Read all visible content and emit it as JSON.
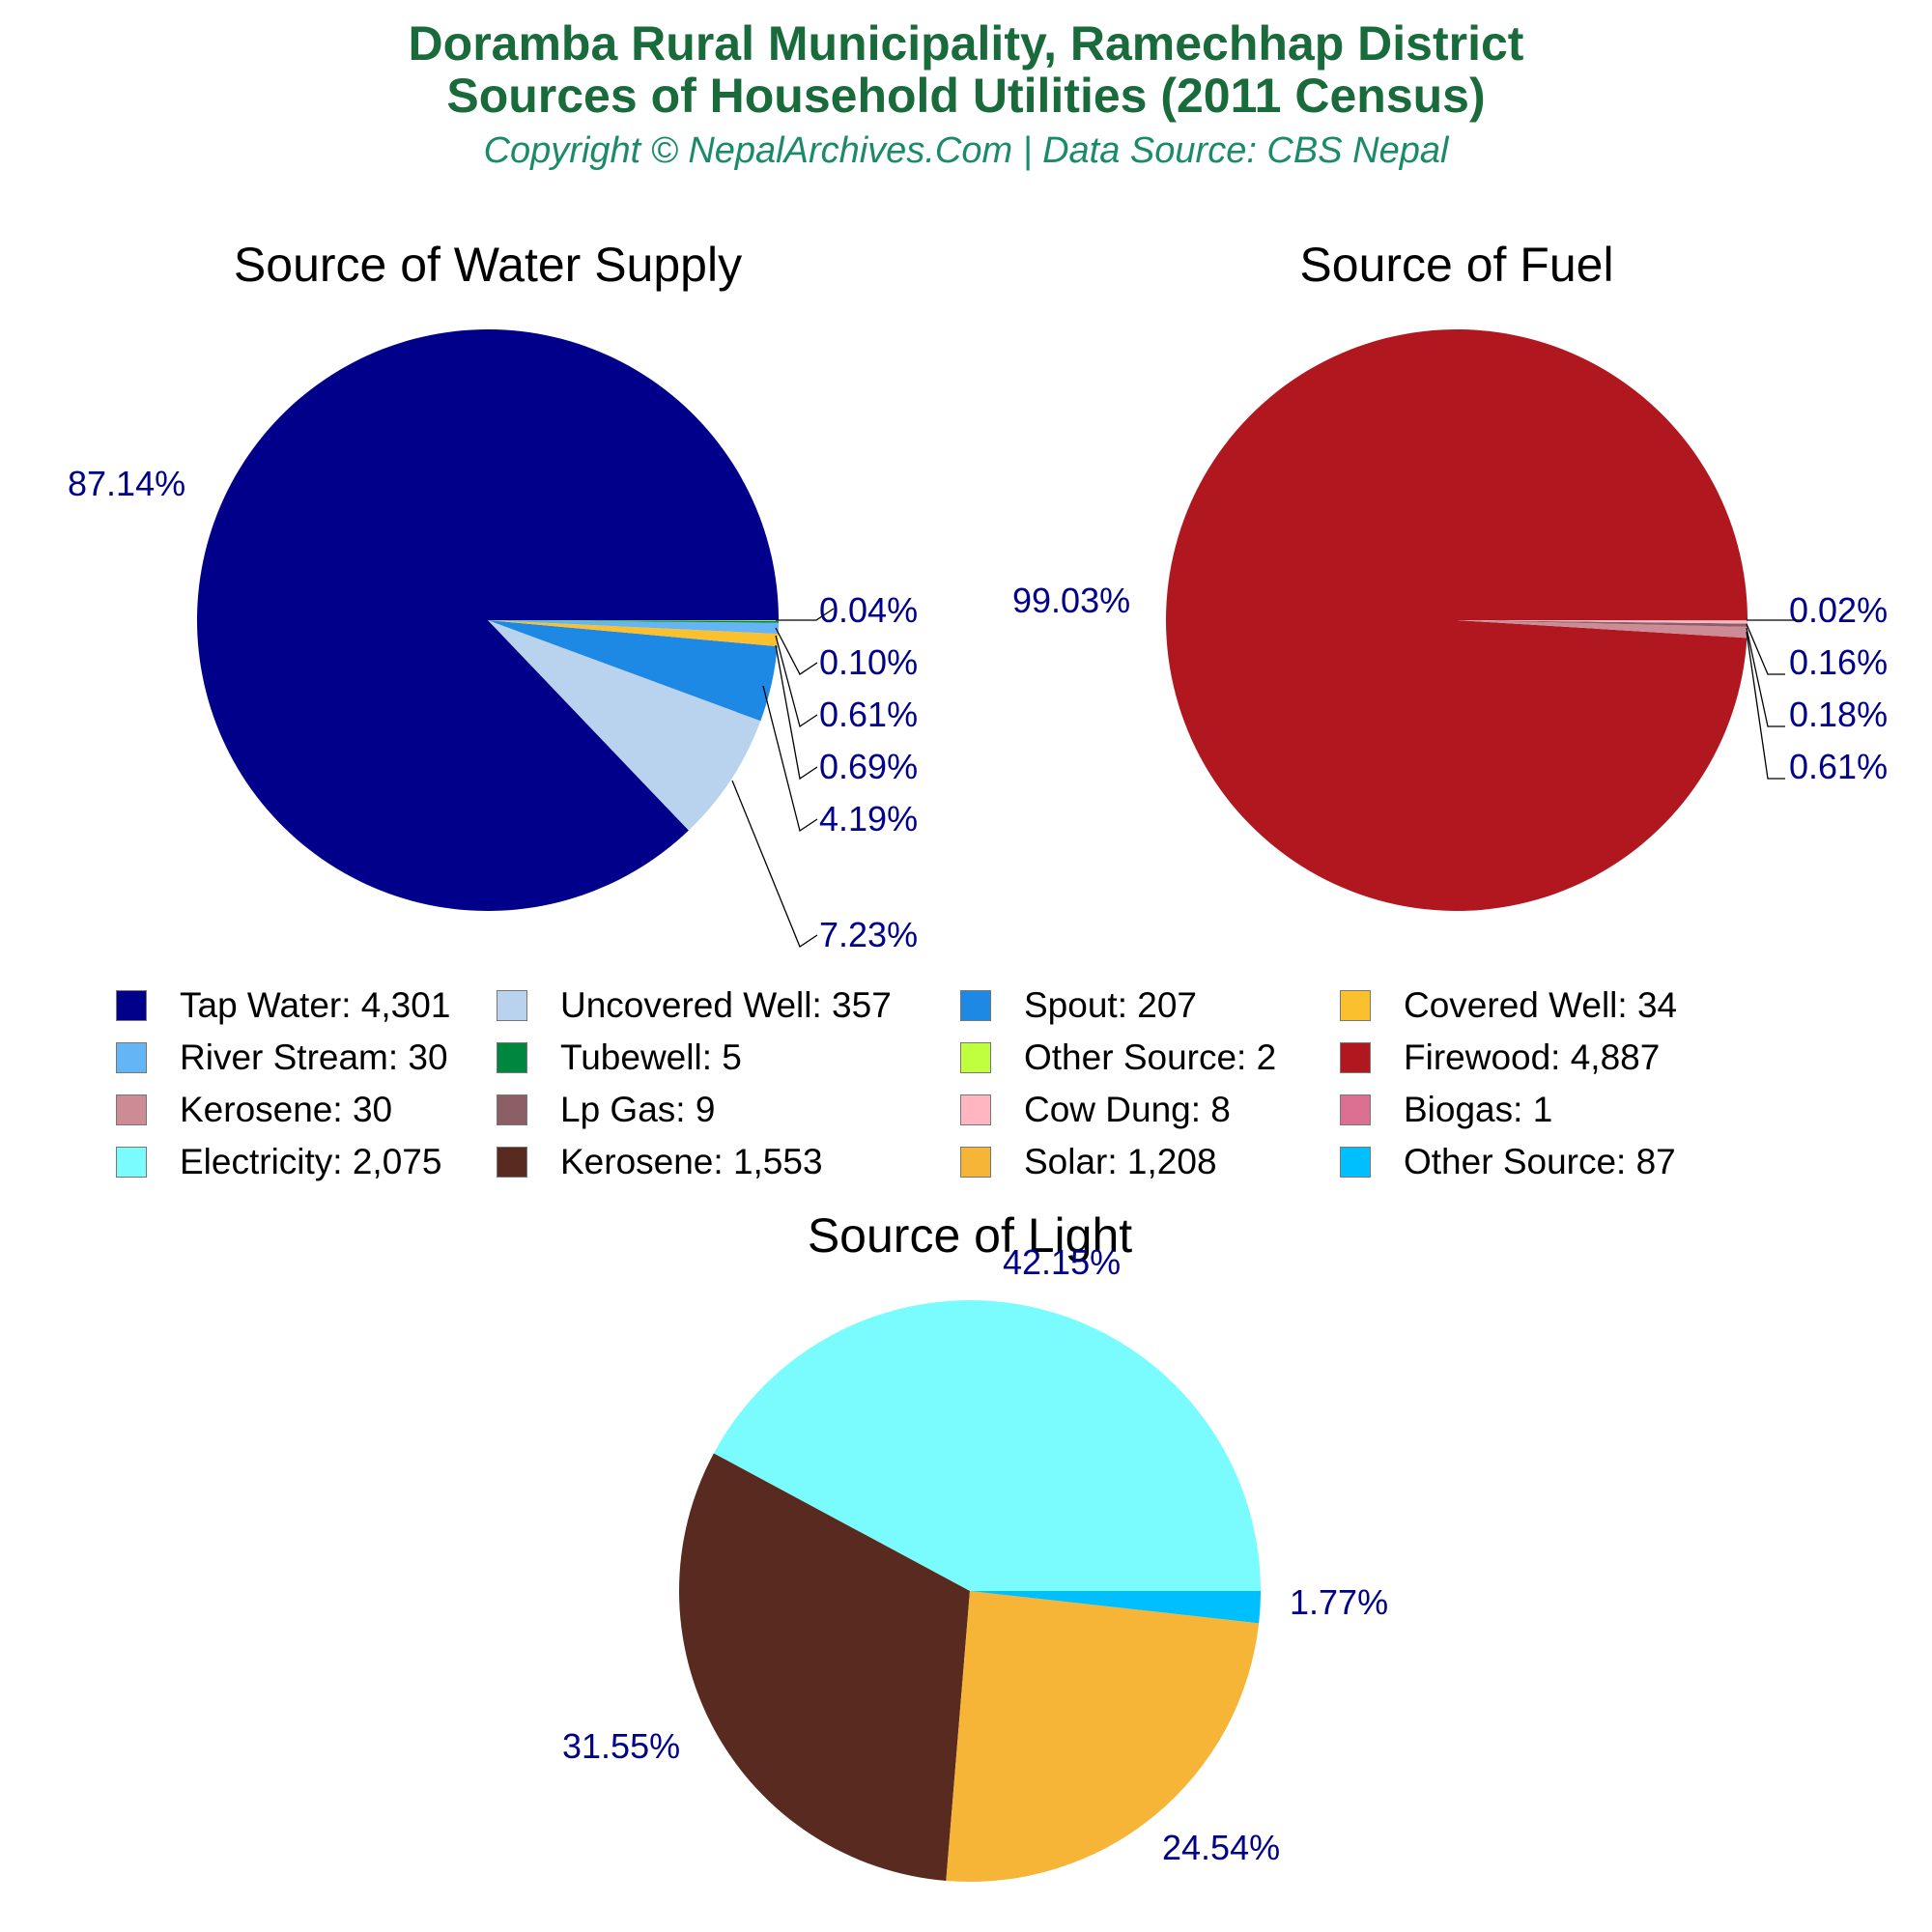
{
  "header": {
    "title_line1": "Doramba Rural Municipality, Ramechhap District",
    "title_line2": "Sources of Household Utilities (2011 Census)",
    "subtitle": "Copyright © NepalArchives.Com | Data Source: CBS Nepal"
  },
  "charts": {
    "water": {
      "title": "Source of Water Supply"
    },
    "fuel": {
      "title": "Source of Fuel"
    },
    "light": {
      "title": "Source of Light"
    }
  },
  "legend": [
    {
      "label": "Tap Water: 4,301",
      "color": "#00008b"
    },
    {
      "label": "Uncovered Well: 357",
      "color": "#b9d3ee"
    },
    {
      "label": "Spout: 207",
      "color": "#1e88e5"
    },
    {
      "label": "Covered Well: 34",
      "color": "#fbc02d"
    },
    {
      "label": "River Stream: 30",
      "color": "#64b5f6"
    },
    {
      "label": "Tubewell: 5",
      "color": "#00873e"
    },
    {
      "label": "Other Source: 2",
      "color": "#c0ff3e"
    },
    {
      "label": "Firewood: 4,887",
      "color": "#b0171f"
    },
    {
      "label": "Kerosene: 30",
      "color": "#cd8c95"
    },
    {
      "label": "Lp Gas: 9",
      "color": "#8b5f65"
    },
    {
      "label": "Cow Dung: 8",
      "color": "#ffb6c1"
    },
    {
      "label": "Biogas: 1",
      "color": "#db7093"
    },
    {
      "label": "Electricity: 2,075",
      "color": "#7afcff"
    },
    {
      "label": "Kerosene: 1,553",
      "color": "#582a20"
    },
    {
      "label": "Solar: 1,208",
      "color": "#f6b537"
    },
    {
      "label": "Other Source: 87",
      "color": "#00bfff"
    }
  ],
  "chart_data": [
    {
      "type": "pie",
      "title": "Source of Water Supply",
      "categories": [
        "Tap Water",
        "Uncovered Well",
        "Spout",
        "Covered Well",
        "River Stream",
        "Tubewell",
        "Other Source"
      ],
      "values": [
        4301,
        357,
        207,
        34,
        30,
        5,
        2
      ],
      "percent_labels": [
        "87.14%",
        "7.23%",
        "4.19%",
        "0.69%",
        "0.61%",
        "0.10%",
        "0.04%"
      ],
      "colors": [
        "#00008b",
        "#b9d3ee",
        "#1e88e5",
        "#fbc02d",
        "#64b5f6",
        "#00873e",
        "#c0ff3e"
      ]
    },
    {
      "type": "pie",
      "title": "Source of Fuel",
      "categories": [
        "Firewood",
        "Kerosene",
        "Lp Gas",
        "Cow Dung",
        "Biogas"
      ],
      "values": [
        4887,
        30,
        9,
        8,
        1
      ],
      "percent_labels": [
        "99.03%",
        "0.61%",
        "0.18%",
        "0.16%",
        "0.02%"
      ],
      "colors": [
        "#b0171f",
        "#cd8c95",
        "#8b5f65",
        "#ffb6c1",
        "#db7093"
      ]
    },
    {
      "type": "pie",
      "title": "Source of Light",
      "categories": [
        "Electricity",
        "Kerosene",
        "Solar",
        "Other Source"
      ],
      "values": [
        2075,
        1553,
        1208,
        87
      ],
      "percent_labels": [
        "42.15%",
        "31.55%",
        "24.54%",
        "1.77%"
      ],
      "colors": [
        "#7afcff",
        "#582a20",
        "#f6b537",
        "#00bfff"
      ]
    }
  ]
}
